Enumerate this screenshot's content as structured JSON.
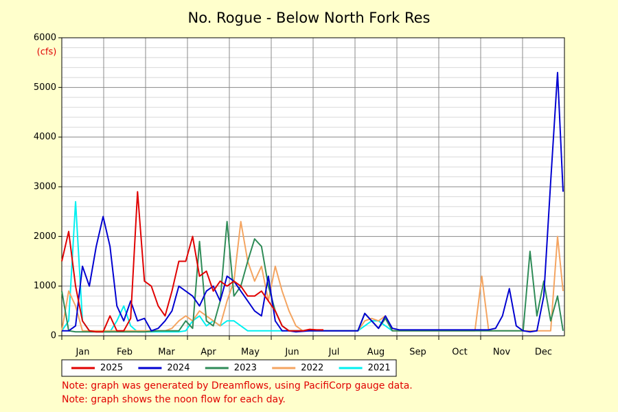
{
  "chart_data": {
    "type": "line",
    "title": "No. Rogue - Below North Fork Res",
    "y_unit": "(cfs)",
    "categories": [
      "Jan",
      "Feb",
      "Mar",
      "Apr",
      "May",
      "Jun",
      "Jul",
      "Aug",
      "Sep",
      "Oct",
      "Nov",
      "Dec"
    ],
    "x": [
      1,
      6,
      11,
      16,
      21,
      26,
      31,
      36,
      41,
      46,
      51,
      56,
      61,
      66,
      71,
      76,
      81,
      86,
      91,
      96,
      101,
      106,
      111,
      116,
      121,
      126,
      131,
      136,
      141,
      146,
      151,
      156,
      161,
      166,
      171,
      176,
      181,
      186,
      191,
      196,
      201,
      206,
      211,
      216,
      221,
      226,
      231,
      236,
      241,
      246,
      251,
      256,
      261,
      266,
      271,
      276,
      281,
      286,
      291,
      296,
      301,
      306,
      311,
      316,
      321,
      326,
      331,
      336,
      341,
      346,
      351,
      356,
      361,
      365
    ],
    "xlim": [
      1,
      366
    ],
    "ylim": [
      0,
      6000
    ],
    "yticks": [
      0,
      1000,
      2000,
      3000,
      4000,
      5000,
      6000
    ],
    "grid": true,
    "series": [
      {
        "name": "2025",
        "color": "#e00000",
        "values": [
          1500,
          2100,
          1000,
          300,
          100,
          80,
          80,
          400,
          100,
          100,
          350,
          2900,
          1100,
          1000,
          600,
          400,
          900,
          1500,
          1500,
          2000,
          1200,
          1300,
          900,
          1100,
          1000,
          1100,
          1000,
          800,
          800,
          900,
          700,
          500,
          200,
          100,
          100,
          100,
          130,
          120,
          120,
          null,
          null,
          null,
          null,
          null,
          null,
          null,
          null,
          null,
          null,
          null,
          null,
          null,
          null,
          null,
          null,
          null,
          null,
          null,
          null,
          null,
          null,
          null,
          null,
          null,
          null,
          null,
          null,
          null,
          null,
          null,
          null,
          null,
          null,
          null
        ]
      },
      {
        "name": "2024",
        "color": "#0000d0",
        "values": [
          100,
          100,
          200,
          1400,
          1000,
          1800,
          2400,
          1800,
          600,
          300,
          700,
          300,
          350,
          100,
          150,
          300,
          500,
          1000,
          900,
          800,
          600,
          900,
          1000,
          700,
          1200,
          1100,
          900,
          700,
          500,
          400,
          1200,
          300,
          100,
          100,
          80,
          90,
          100,
          100,
          100,
          100,
          100,
          100,
          100,
          100,
          450,
          300,
          150,
          400,
          150,
          120,
          120,
          120,
          120,
          120,
          120,
          120,
          120,
          120,
          120,
          120,
          120,
          120,
          120,
          150,
          400,
          950,
          200,
          100,
          80,
          100,
          800,
          3100,
          5300,
          2900
        ]
      },
      {
        "name": "2023",
        "color": "#2e8b57",
        "values": [
          900,
          100,
          80,
          80,
          80,
          80,
          80,
          80,
          80,
          80,
          80,
          80,
          80,
          90,
          100,
          100,
          100,
          100,
          300,
          150,
          1900,
          300,
          200,
          700,
          2300,
          800,
          1000,
          1500,
          1950,
          1800,
          1000,
          500,
          200,
          100,
          100,
          100,
          100,
          100,
          100,
          100,
          100,
          100,
          100,
          100,
          450,
          300,
          150,
          350,
          100,
          100,
          100,
          100,
          100,
          100,
          100,
          100,
          100,
          100,
          100,
          100,
          100,
          100,
          100,
          100,
          100,
          100,
          100,
          100,
          1700,
          400,
          1100,
          300,
          800,
          100
        ]
      },
      {
        "name": "2022",
        "color": "#f4a460",
        "values": [
          100,
          900,
          600,
          100,
          100,
          100,
          100,
          100,
          100,
          100,
          100,
          100,
          100,
          100,
          100,
          100,
          150,
          300,
          400,
          300,
          500,
          400,
          300,
          200,
          700,
          1100,
          2300,
          1500,
          1100,
          1400,
          700,
          1400,
          900,
          500,
          200,
          100,
          100,
          100,
          100,
          100,
          100,
          100,
          100,
          100,
          300,
          350,
          300,
          400,
          100,
          100,
          100,
          100,
          100,
          100,
          100,
          100,
          100,
          100,
          100,
          100,
          100,
          1200,
          100,
          100,
          100,
          100,
          100,
          100,
          100,
          100,
          100,
          100,
          2000,
          900
        ]
      },
      {
        "name": "2021",
        "color": "#00f0f0",
        "values": [
          100,
          300,
          2700,
          300,
          100,
          80,
          80,
          80,
          300,
          600,
          200,
          80,
          80,
          80,
          80,
          80,
          80,
          80,
          100,
          300,
          400,
          200,
          300,
          200,
          300,
          300,
          200,
          100,
          100,
          100,
          100,
          100,
          100,
          100,
          100,
          100,
          100,
          100,
          100,
          100,
          100,
          100,
          100,
          100,
          200,
          300,
          300,
          200,
          100,
          null,
          null,
          null,
          null,
          null,
          null,
          null,
          null,
          null,
          null,
          null,
          null,
          null,
          null,
          null,
          null,
          null,
          null,
          null,
          null,
          null,
          null,
          null,
          null,
          null
        ]
      }
    ],
    "notes": [
      "Note: graph was generated by Dreamflows, using PacifiCorp gauge data.",
      "Note: graph shows the noon flow for each day."
    ]
  }
}
